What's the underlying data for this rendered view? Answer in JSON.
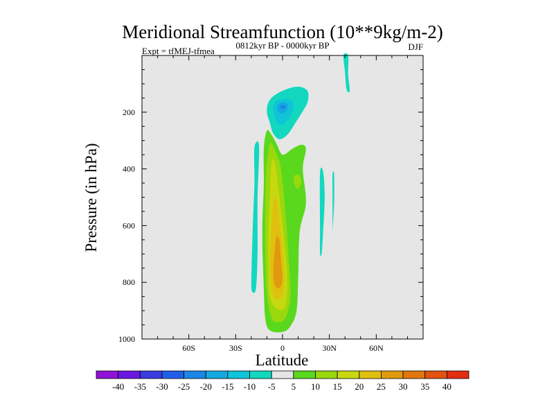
{
  "chart_data": {
    "type": "filled-contour",
    "title": "Meridional Streamfunction (10**9kg/m-2)",
    "subtitle_left": "Expt = tfMEJ-tfmea",
    "subtitle_center": "0812kyr BP - 0000kyr BP",
    "subtitle_right": "DJF",
    "xlabel": "Latitude",
    "ylabel": "Pressure (in hPa)",
    "xlim": [
      -90,
      90
    ],
    "ylim": [
      0,
      1000
    ],
    "y_inverted": true,
    "x_ticks": [
      {
        "value": -60,
        "label": "60S"
      },
      {
        "value": -30,
        "label": "30S"
      },
      {
        "value": 0,
        "label": "0"
      },
      {
        "value": 30,
        "label": "30N"
      },
      {
        "value": 60,
        "label": "60N"
      }
    ],
    "y_ticks": [
      {
        "value": 200,
        "label": "200"
      },
      {
        "value": 400,
        "label": "400"
      },
      {
        "value": 600,
        "label": "600"
      },
      {
        "value": 800,
        "label": "800"
      },
      {
        "value": 1000,
        "label": "1000"
      }
    ],
    "background_color": "#e6e6e6",
    "colorbar": {
      "levels": [
        "-40",
        "-35",
        "-30",
        "-25",
        "-20",
        "-15",
        "-10",
        "-5",
        "5",
        "10",
        "15",
        "20",
        "25",
        "30",
        "35",
        "40"
      ],
      "colors": [
        "#8f13d6",
        "#6a18e0",
        "#3a3ce0",
        "#2060e8",
        "#1b86e6",
        "#14a8e0",
        "#10c4d8",
        "#12d8c0",
        "#e6e6e6",
        "#5ad81e",
        "#9ad80e",
        "#c8d80e",
        "#e0c00e",
        "#e09a0e",
        "#e2760e",
        "#e25210",
        "#e22e12"
      ]
    },
    "regions": [
      {
        "name": "upper-tropical-cell",
        "value": -10,
        "color": "#12d8c0",
        "points": [
          [
            -9,
            165
          ],
          [
            -5,
            140
          ],
          [
            2,
            120
          ],
          [
            10,
            110
          ],
          [
            16,
            125
          ],
          [
            16,
            165
          ],
          [
            12,
            205
          ],
          [
            8,
            240
          ],
          [
            3,
            280
          ],
          [
            -2,
            295
          ],
          [
            -6,
            275
          ],
          [
            -8,
            240
          ],
          [
            -10,
            200
          ]
        ]
      },
      {
        "name": "upper-cell-core-outer",
        "value": -15,
        "color": "#10c4d8",
        "points": [
          [
            -6,
            190
          ],
          [
            -5,
            165
          ],
          [
            0,
            155
          ],
          [
            6,
            160
          ],
          [
            7,
            185
          ],
          [
            5,
            215
          ],
          [
            1,
            240
          ],
          [
            -3,
            240
          ],
          [
            -5,
            220
          ]
        ]
      },
      {
        "name": "upper-cell-core-inner",
        "value": -20,
        "color": "#14a8e0",
        "points": [
          [
            -3,
            175
          ],
          [
            0,
            165
          ],
          [
            3,
            170
          ],
          [
            3,
            190
          ],
          [
            0,
            205
          ],
          [
            -3,
            195
          ]
        ]
      },
      {
        "name": "upper-cell-core-center",
        "value": -25,
        "color": "#1b86e6",
        "points": [
          [
            -1,
            177
          ],
          [
            1,
            175
          ],
          [
            2,
            183
          ],
          [
            0,
            190
          ],
          [
            -1,
            186
          ]
        ]
      },
      {
        "name": "upper-right-strip",
        "value": -5,
        "color": "#12d8c0",
        "points": [
          [
            39,
            0
          ],
          [
            42,
            0
          ],
          [
            42,
            65
          ],
          [
            43,
            125
          ],
          [
            41,
            120
          ],
          [
            40,
            60
          ]
        ]
      },
      {
        "name": "lower-left-strip",
        "value": -5,
        "color": "#12d8c0",
        "points": [
          [
            -18,
            325
          ],
          [
            -15,
            320
          ],
          [
            -16,
            500
          ],
          [
            -16,
            700
          ],
          [
            -17,
            820
          ],
          [
            -19,
            835
          ],
          [
            -20,
            800
          ],
          [
            -19,
            600
          ],
          [
            -18,
            450
          ]
        ]
      },
      {
        "name": "right-strip-a",
        "value": -5,
        "color": "#12d8c0",
        "points": [
          [
            24,
            415
          ],
          [
            26,
            410
          ],
          [
            27,
            500
          ],
          [
            26,
            620
          ],
          [
            25,
            700
          ],
          [
            24,
            695
          ],
          [
            24,
            600
          ]
        ]
      },
      {
        "name": "right-strip-b",
        "value": -5,
        "color": "#12d8c0",
        "points": [
          [
            32,
            420
          ],
          [
            33,
            420
          ],
          [
            33,
            520
          ],
          [
            32,
            620
          ],
          [
            32,
            600
          ],
          [
            32,
            500
          ]
        ]
      },
      {
        "name": "lower-cell-outer",
        "value": 5,
        "color": "#5ad81e",
        "points": [
          [
            -10,
            265
          ],
          [
            -7,
            280
          ],
          [
            -4,
            310
          ],
          [
            0,
            350
          ],
          [
            6,
            330
          ],
          [
            12,
            315
          ],
          [
            15,
            330
          ],
          [
            13,
            400
          ],
          [
            15,
            520
          ],
          [
            11,
            620
          ],
          [
            10,
            780
          ],
          [
            9,
            900
          ],
          [
            5,
            955
          ],
          [
            0,
            975
          ],
          [
            -8,
            970
          ],
          [
            -11,
            930
          ],
          [
            -12,
            820
          ],
          [
            -13,
            620
          ],
          [
            -12,
            460
          ],
          [
            -12,
            330
          ]
        ]
      },
      {
        "name": "lower-cell-bump",
        "value": 10,
        "color": "#9ad80e",
        "points": [
          [
            7,
            430
          ],
          [
            10,
            420
          ],
          [
            12,
            445
          ],
          [
            10,
            470
          ],
          [
            8,
            460
          ]
        ]
      },
      {
        "name": "lower-cell-10",
        "value": 10,
        "color": "#9ad80e",
        "points": [
          [
            -8,
            310
          ],
          [
            -6,
            320
          ],
          [
            -4,
            345
          ],
          [
            -1,
            400
          ],
          [
            2,
            560
          ],
          [
            4,
            720
          ],
          [
            5,
            850
          ],
          [
            2,
            925
          ],
          [
            -3,
            940
          ],
          [
            -7,
            925
          ],
          [
            -10,
            840
          ],
          [
            -11,
            700
          ],
          [
            -11,
            500
          ],
          [
            -10,
            380
          ]
        ]
      },
      {
        "name": "lower-cell-15",
        "value": 15,
        "color": "#c8d80e",
        "points": [
          [
            -7,
            380
          ],
          [
            -5,
            375
          ],
          [
            -2,
            500
          ],
          [
            1,
            650
          ],
          [
            3,
            780
          ],
          [
            2,
            880
          ],
          [
            -3,
            895
          ],
          [
            -8,
            855
          ],
          [
            -9,
            760
          ],
          [
            -9,
            620
          ],
          [
            -8,
            480
          ]
        ]
      },
      {
        "name": "lower-cell-20",
        "value": 20,
        "color": "#e0c00e",
        "points": [
          [
            -6,
            520
          ],
          [
            -4,
            500
          ],
          [
            -2,
            580
          ],
          [
            0,
            680
          ],
          [
            1,
            780
          ],
          [
            0,
            840
          ],
          [
            -4,
            860
          ],
          [
            -7,
            820
          ],
          [
            -8,
            720
          ],
          [
            -7,
            600
          ]
        ]
      },
      {
        "name": "lower-cell-25",
        "value": 25,
        "color": "#e09a0e",
        "points": [
          [
            -4,
            640
          ],
          [
            -2,
            650
          ],
          [
            -1,
            720
          ],
          [
            0,
            790
          ],
          [
            -2,
            820
          ],
          [
            -5,
            810
          ],
          [
            -6,
            760
          ],
          [
            -5,
            690
          ]
        ]
      }
    ]
  }
}
